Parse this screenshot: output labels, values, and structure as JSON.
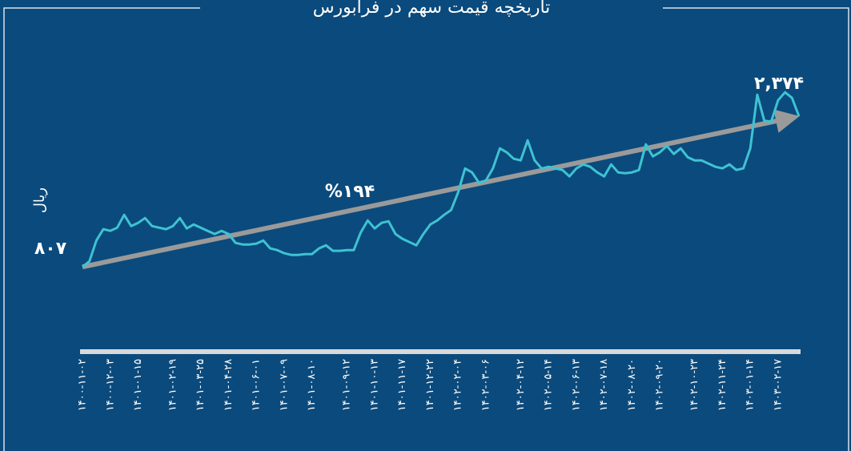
{
  "chart_data": {
    "type": "line",
    "title": "تاریخچه قیمت سهم در فرابورس",
    "y_label": "ریال",
    "annotation": "%۱۹۴",
    "categories": [
      "۱۴۰۰-۱۱-۰۲",
      null,
      null,
      null,
      "۱۴۰۰-۱۲-۰۳",
      null,
      null,
      null,
      "۱۴۰۱-۰۱-۱۵",
      null,
      null,
      null,
      null,
      "۱۴۰۱-۰۲-۱۹",
      null,
      null,
      null,
      "۱۴۰۱-۰۳-۲۵",
      null,
      null,
      null,
      "۱۴۰۱-۰۴-۲۸",
      null,
      null,
      null,
      "۱۴۰۱-۰۶-۰۱",
      null,
      null,
      null,
      "۱۴۰۱-۰۷-۰۹",
      null,
      null,
      null,
      "۱۴۰۱-۰۸-۱۰",
      null,
      null,
      null,
      null,
      "۱۴۰۱-۰۹-۱۲",
      null,
      null,
      null,
      "۱۴۰۱-۱۰-۱۳",
      null,
      null,
      null,
      "۱۴۰۱-۱۱-۱۷",
      null,
      null,
      null,
      "۱۴۰۱-۱۲-۲۲",
      null,
      null,
      null,
      "۱۴۰۲-۰۲-۰۴",
      null,
      null,
      null,
      "۱۴۰۲-۰۳-۰۶",
      null,
      null,
      null,
      null,
      "۱۴۰۲-۰۴-۱۲",
      null,
      null,
      null,
      "۱۴۰۲-۰۵-۱۴",
      null,
      null,
      null,
      "۱۴۰۲-۰۶-۱۳",
      null,
      null,
      null,
      "۱۴۰۲-۰۷-۱۸",
      null,
      null,
      null,
      "۱۴۰۲-۰۸-۲۰",
      null,
      null,
      null,
      "۱۴۰۲-۰۹-۲۰",
      null,
      null,
      null,
      null,
      "۱۴۰۲-۱۰-۲۳",
      null,
      null,
      null,
      "۱۴۰۲-۱۱-۲۴",
      null,
      null,
      null,
      "۱۴۰۳-۰۱-۱۴",
      null,
      null,
      null,
      "۱۴۰۳-۰۲-۱۷",
      null,
      null,
      null
    ],
    "series": [
      {
        "color": "#3ec3d3",
        "values": [
          807,
          865,
          1082,
          1199,
          1182,
          1215,
          1348,
          1232,
          1265,
          1315,
          1232,
          1215,
          1199,
          1232,
          1315,
          1207,
          1248,
          1215,
          1182,
          1149,
          1182,
          1149,
          1057,
          1040,
          1040,
          1049,
          1082,
          999,
          982,
          949,
          932,
          932,
          940,
          940,
          999,
          1032,
          974,
          974,
          982,
          982,
          1165,
          1290,
          1207,
          1265,
          1282,
          1149,
          1099,
          1065,
          1032,
          1149,
          1248,
          1290,
          1348,
          1398,
          1581,
          1831,
          1790,
          1682,
          1707,
          1831,
          2040,
          1998,
          1932,
          1915,
          2123,
          1915,
          1831,
          1848,
          1831,
          1815,
          1748,
          1831,
          1873,
          1848,
          1790,
          1748,
          1873,
          1790,
          1782,
          1790,
          1815,
          2082,
          1957,
          1998,
          2065,
          1982,
          2040,
          1948,
          1915,
          1915,
          1882,
          1848,
          1832,
          1873,
          1815,
          1832,
          2040,
          2598,
          2331,
          2315,
          2540,
          2623,
          2565,
          2374
        ],
        "value_labels": [
          "۸۰۷",
          null,
          null,
          null,
          null,
          null,
          null,
          null,
          null,
          null,
          null,
          null,
          null,
          null,
          null,
          null,
          null,
          null,
          null,
          null,
          null,
          null,
          null,
          null,
          null,
          null,
          null,
          null,
          null,
          null,
          null,
          null,
          null,
          null,
          null,
          null,
          null,
          null,
          null,
          null,
          null,
          null,
          null,
          null,
          null,
          null,
          null,
          null,
          null,
          null,
          null,
          null,
          null,
          null,
          null,
          null,
          null,
          null,
          null,
          null,
          null,
          null,
          null,
          null,
          null,
          null,
          null,
          null,
          null,
          null,
          null,
          null,
          null,
          null,
          null,
          null,
          null,
          null,
          null,
          null,
          null,
          null,
          null,
          null,
          null,
          null,
          null,
          null,
          null,
          null,
          null,
          null,
          null,
          null,
          null,
          null,
          null,
          null,
          null,
          null,
          null,
          null,
          null,
          "۲,۳۷۴"
        ]
      }
    ],
    "trend_color": "#9a9a9a",
    "axis_color": "#d9d9d9",
    "ylim": [
      400,
      2900
    ]
  }
}
